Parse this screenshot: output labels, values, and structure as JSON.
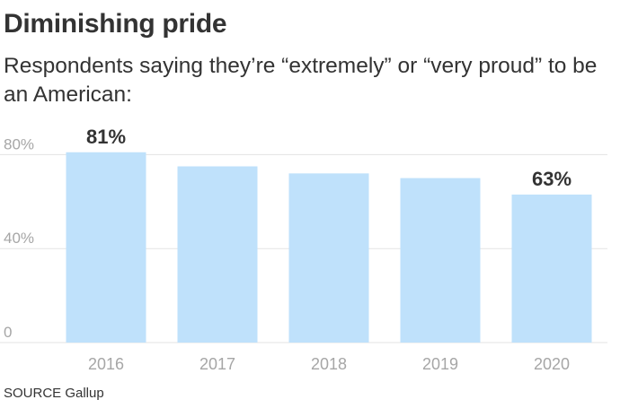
{
  "title": "Diminishing pride",
  "subtitle": "Respondents saying they’re “extremely” or “very proud” to be an American:",
  "source": "SOURCE Gallup",
  "colors": {
    "bar": "#bfe1fb",
    "text": "#333333",
    "axis_text": "#a6a6a6",
    "grid": "#e3e3e3"
  },
  "chart_data": {
    "type": "bar",
    "categories": [
      "2016",
      "2017",
      "2018",
      "2019",
      "2020"
    ],
    "values": [
      81,
      75,
      72,
      70,
      63
    ],
    "data_labels": [
      "81%",
      "",
      "",
      "",
      "63%"
    ],
    "ylim": [
      0,
      100
    ],
    "yticks": [
      0,
      40,
      80
    ],
    "ytick_labels": [
      "0",
      "40%",
      "80%"
    ],
    "grid": true,
    "xlabel": "",
    "ylabel": ""
  }
}
